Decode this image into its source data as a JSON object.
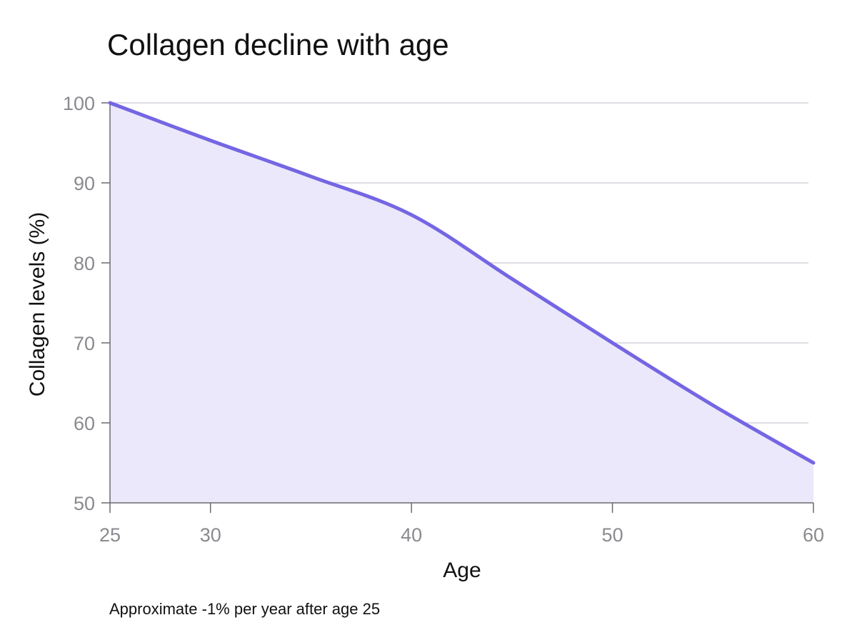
{
  "chart_data": {
    "type": "area",
    "title": "Collagen decline with age",
    "xlabel": "Age",
    "ylabel": "Collagen levels (%)",
    "annotation": "Approximate -1% per year after age 25",
    "x": [
      25,
      30,
      35,
      40,
      45,
      50,
      55,
      60
    ],
    "y": [
      100,
      95.3,
      90.8,
      86,
      78,
      70,
      62.2,
      55
    ],
    "xlim": [
      25,
      60
    ],
    "ylim": [
      50,
      100
    ],
    "xticks": [
      25,
      30,
      40,
      50,
      60
    ],
    "yticks": [
      50,
      60,
      70,
      80,
      90,
      100
    ],
    "grid": "horizontal",
    "line_color": "#7466e3",
    "fill_color": "#ebe8fb"
  }
}
